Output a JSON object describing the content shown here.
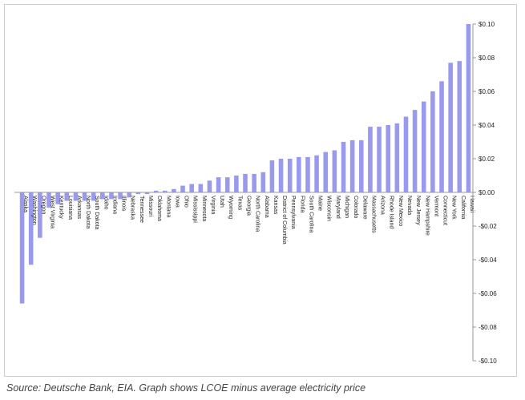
{
  "caption": "Source: Deutsche Bank, EIA. Graph shows LCOE minus average electricity price",
  "chart_data": {
    "type": "bar",
    "orientation": "vertical",
    "y_axis_position": "right",
    "bar_color": "#9999ee",
    "ylim": [
      -0.1,
      0.1
    ],
    "y_ticks": [
      0.1,
      0.08,
      0.06,
      0.04,
      0.02,
      0.0,
      -0.02,
      -0.04,
      -0.06,
      -0.08,
      -0.1
    ],
    "y_tick_labels": [
      "$0.10",
      "$0.08",
      "$0.06",
      "$0.04",
      "$0.02",
      "$0.00",
      "-$0.02",
      "-$0.04",
      "-$0.06",
      "-$0.08",
      "-$0.10"
    ],
    "grid": false,
    "legend": "none",
    "categories": [
      "Alaska",
      "Washington",
      "Oregon",
      "West Virginia",
      "Kentucky",
      "Louisiana",
      "Arkansas",
      "North Dakota",
      "South Dakota",
      "Idaho",
      "Indiana",
      "Illinois",
      "Nebraska",
      "Tennessee",
      "Missouri",
      "Oklahoma",
      "Montana",
      "Iowa",
      "Ohio",
      "Mississippi",
      "Minnesota",
      "Virginia",
      "Utah",
      "Wyoming",
      "Texas",
      "Georgia",
      "North Carolina",
      "Alabama",
      "Kansas",
      "District of Columbia",
      "Pennsylvania",
      "Florida",
      "South Carolina",
      "Maine",
      "Wisconsin",
      "Maryland",
      "Michigan",
      "Colorado",
      "Delaware",
      "Massachusetts",
      "Arizona",
      "Rhode Island",
      "New Mexico",
      "Nevada",
      "New Jersey",
      "New Hampshire",
      "Vermont",
      "Connecticut",
      "New York",
      "California",
      "Hawaii"
    ],
    "values": [
      -0.066,
      -0.043,
      -0.027,
      -0.009,
      -0.007,
      -0.005,
      -0.005,
      -0.005,
      -0.005,
      -0.004,
      -0.004,
      -0.004,
      -0.003,
      -0.001,
      -0.001,
      0.001,
      0.001,
      0.002,
      0.004,
      0.005,
      0.005,
      0.007,
      0.009,
      0.009,
      0.01,
      0.011,
      0.011,
      0.012,
      0.019,
      0.02,
      0.02,
      0.021,
      0.021,
      0.022,
      0.024,
      0.025,
      0.03,
      0.031,
      0.031,
      0.039,
      0.039,
      0.04,
      0.041,
      0.045,
      0.049,
      0.054,
      0.06,
      0.066,
      0.077,
      0.078,
      0.1
    ]
  }
}
